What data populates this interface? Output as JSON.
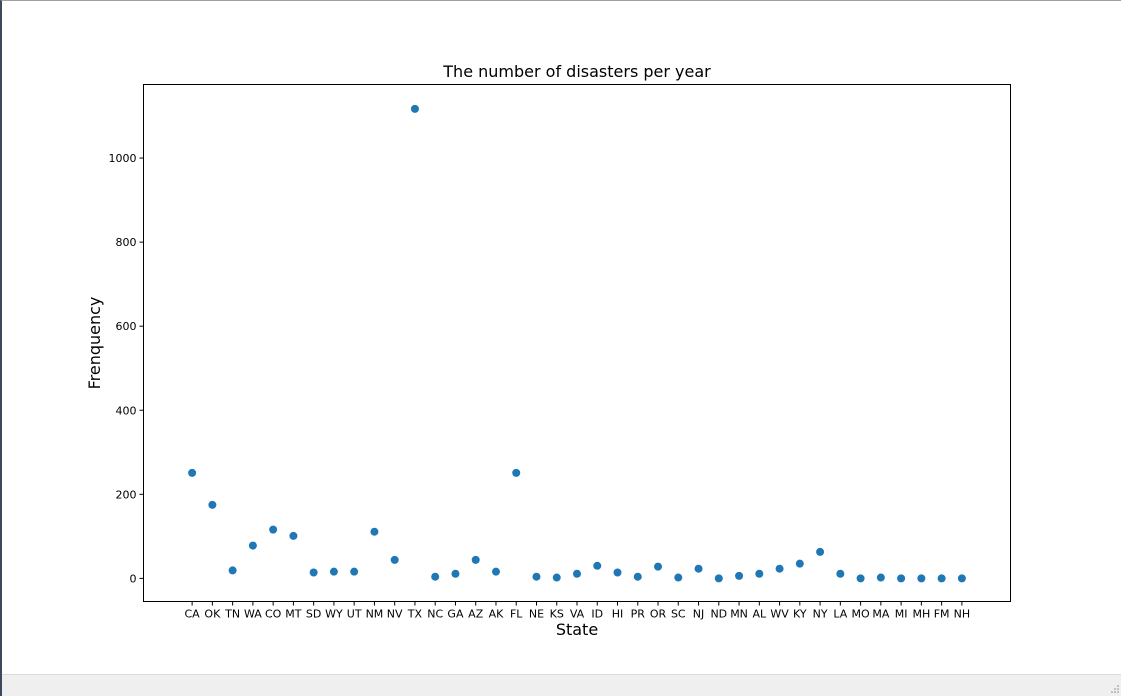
{
  "chart_data": {
    "type": "scatter",
    "title": "The number of disasters per year",
    "xlabel": "State",
    "ylabel": "Frenquency",
    "categories": [
      "CA",
      "OK",
      "TN",
      "WA",
      "CO",
      "MT",
      "SD",
      "WY",
      "UT",
      "NM",
      "NV",
      "TX",
      "NC",
      "GA",
      "AZ",
      "AK",
      "FL",
      "NE",
      "KS",
      "VA",
      "ID",
      "HI",
      "PR",
      "OR",
      "SC",
      "NJ",
      "ND",
      "MN",
      "AL",
      "WV",
      "KY",
      "NY",
      "LA",
      "MO",
      "MA",
      "MI",
      "MH",
      "FM",
      "NH"
    ],
    "values": [
      251,
      175,
      19,
      78,
      116,
      101,
      14,
      16,
      16,
      111,
      44,
      1117,
      4,
      11,
      44,
      16,
      251,
      4,
      2,
      11,
      30,
      14,
      4,
      28,
      2,
      23,
      0,
      6,
      11,
      23,
      35,
      63,
      11,
      0,
      2,
      0,
      0,
      0,
      0
    ],
    "ylim": [
      -55,
      1175
    ],
    "yticks": [
      0,
      200,
      400,
      600,
      800,
      1000
    ],
    "marker_color": "#1f77b4",
    "grid": false
  }
}
